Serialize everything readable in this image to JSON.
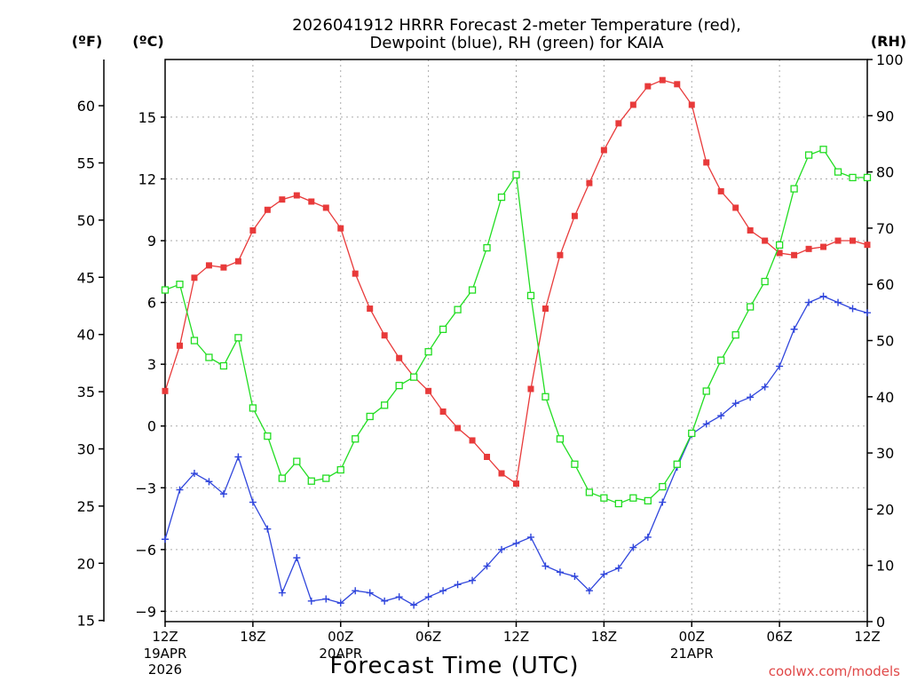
{
  "chart_data": {
    "type": "line",
    "title_line1": "2026041912 HRRR Forecast 2-meter Temperature (red),",
    "title_line2": "Dewpoint (blue), RH (green) for KAIA",
    "unit_left_f": "(ºF)",
    "unit_left_c": "(ºC)",
    "unit_right": "(RH)",
    "xlabel": "Forecast Time (UTC)",
    "credit": "coolwx.com/models",
    "grid": true,
    "x_ticks": [
      {
        "h": 0,
        "label": "12Z",
        "sub": [
          "19APR",
          "2026"
        ]
      },
      {
        "h": 6,
        "label": "18Z",
        "sub": []
      },
      {
        "h": 12,
        "label": "00Z",
        "sub": [
          "20APR"
        ]
      },
      {
        "h": 18,
        "label": "06Z",
        "sub": []
      },
      {
        "h": 24,
        "label": "12Z",
        "sub": []
      },
      {
        "h": 30,
        "label": "18Z",
        "sub": []
      },
      {
        "h": 36,
        "label": "00Z",
        "sub": [
          "21APR"
        ]
      },
      {
        "h": 42,
        "label": "06Z",
        "sub": []
      },
      {
        "h": 48,
        "label": "12Z",
        "sub": []
      }
    ],
    "xlim": [
      0,
      48
    ],
    "ylim_c": [
      -9.5,
      17.8
    ],
    "yticks_c": [
      -9,
      -6,
      -3,
      0,
      3,
      6,
      9,
      12,
      15
    ],
    "yticks_f": [
      15,
      20,
      25,
      30,
      35,
      40,
      45,
      50,
      55,
      60
    ],
    "ylim_rh": [
      0,
      100
    ],
    "yticks_rh": [
      0,
      10,
      20,
      30,
      40,
      50,
      60,
      70,
      80,
      90,
      100
    ],
    "series": [
      {
        "name": "Temperature",
        "axis": "c",
        "color": "#e83a3a",
        "marker": "filled-square",
        "x": [
          0,
          1,
          2,
          3,
          4,
          5,
          6,
          7,
          8,
          9,
          10,
          11,
          12,
          13,
          14,
          15,
          16,
          17,
          18,
          19,
          20,
          21,
          22,
          23,
          24,
          25,
          26,
          27,
          28,
          29,
          30,
          31,
          32,
          33,
          34,
          35,
          36,
          37,
          38,
          39,
          40,
          41,
          42,
          43,
          44,
          45,
          46,
          47,
          48
        ],
        "values": [
          1.7,
          3.9,
          7.2,
          7.8,
          7.7,
          8.0,
          9.5,
          10.5,
          11.0,
          11.2,
          10.9,
          10.6,
          9.6,
          7.4,
          5.7,
          4.4,
          3.3,
          2.4,
          1.7,
          0.7,
          -0.1,
          -0.7,
          -1.5,
          -2.3,
          -2.8,
          1.8,
          5.7,
          8.3,
          10.2,
          11.8,
          13.4,
          14.7,
          15.6,
          16.5,
          16.8,
          16.6,
          15.6,
          12.8,
          11.4,
          10.6,
          9.5,
          9.0,
          8.4,
          8.3,
          8.6,
          8.7,
          9.0,
          9.0,
          8.8
        ]
      },
      {
        "name": "Dewpoint",
        "axis": "c",
        "color": "#3046dc",
        "marker": "plus",
        "x": [
          0,
          1,
          2,
          3,
          4,
          5,
          6,
          7,
          8,
          9,
          10,
          11,
          12,
          13,
          14,
          15,
          16,
          17,
          18,
          19,
          20,
          21,
          22,
          23,
          24,
          25,
          26,
          27,
          28,
          29,
          30,
          31,
          32,
          33,
          34,
          35,
          36,
          37,
          38,
          39,
          40,
          41,
          42,
          43,
          44,
          45,
          46,
          47,
          48
        ],
        "values": [
          -5.5,
          -3.1,
          -2.3,
          -2.7,
          -3.3,
          -1.5,
          -3.7,
          -5.0,
          -8.1,
          -6.4,
          -8.5,
          -8.4,
          -8.6,
          -8.0,
          -8.1,
          -8.5,
          -8.3,
          -8.7,
          -8.3,
          -8.0,
          -7.7,
          -7.5,
          -6.8,
          -6.0,
          -5.7,
          -5.4,
          -6.8,
          -7.1,
          -7.3,
          -8.0,
          -7.2,
          -6.9,
          -5.9,
          -5.4,
          -3.7,
          -2.0,
          -0.4,
          0.1,
          0.5,
          1.1,
          1.4,
          1.9,
          2.9,
          4.7,
          6.0,
          6.3,
          6.0,
          5.7,
          5.5
        ]
      },
      {
        "name": "RH",
        "axis": "rh",
        "color": "#22dd22",
        "marker": "open-square",
        "x": [
          0,
          1,
          2,
          3,
          4,
          5,
          6,
          7,
          8,
          9,
          10,
          11,
          12,
          13,
          14,
          15,
          16,
          17,
          18,
          19,
          20,
          21,
          22,
          23,
          24,
          25,
          26,
          27,
          28,
          29,
          30,
          31,
          32,
          33,
          34,
          35,
          36,
          37,
          38,
          39,
          40,
          41,
          42,
          43,
          44,
          45,
          46,
          47,
          48
        ],
        "values": [
          59,
          60,
          50,
          47,
          45.5,
          50.5,
          38,
          33,
          25.5,
          28.5,
          25,
          25.5,
          27,
          32.5,
          36.5,
          38.5,
          42,
          43.5,
          48,
          52,
          55.5,
          59,
          66.5,
          75.5,
          79.5,
          58,
          40,
          32.5,
          28,
          23,
          22,
          21,
          22,
          21.5,
          24,
          28,
          33.5,
          41,
          46.5,
          51,
          56,
          60.5,
          67,
          77,
          83,
          84,
          80,
          79,
          79
        ]
      }
    ]
  }
}
